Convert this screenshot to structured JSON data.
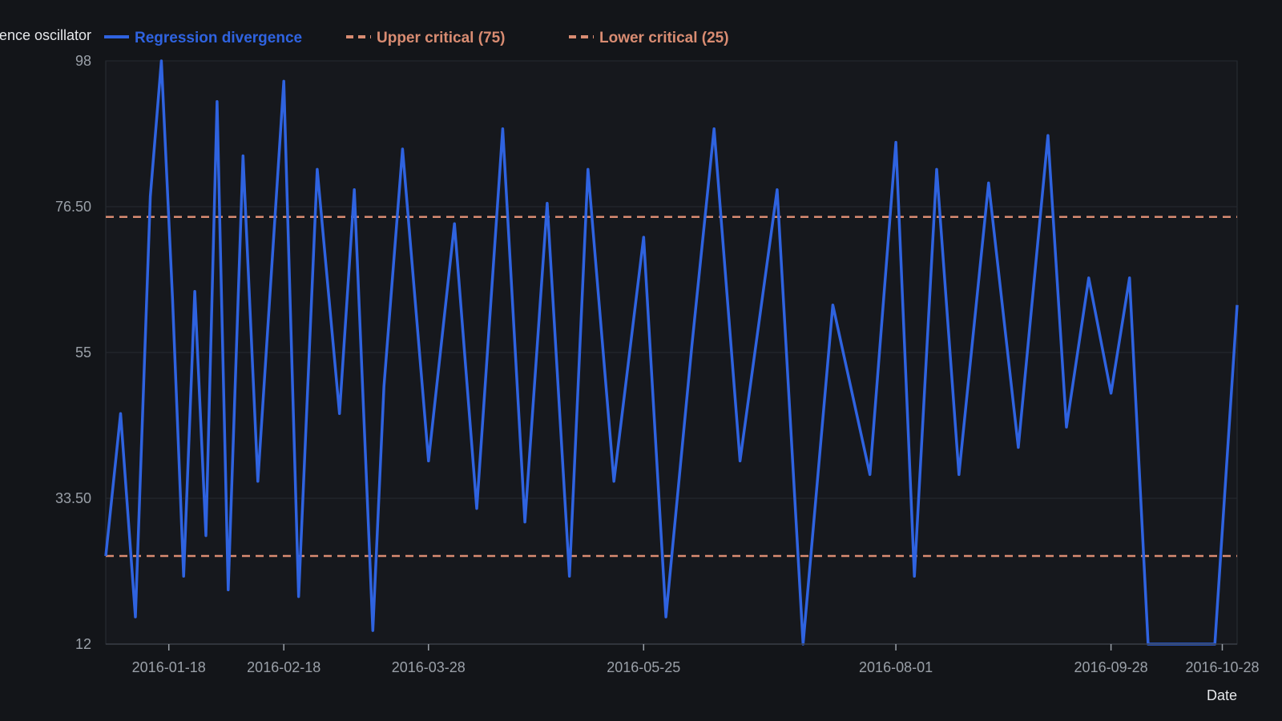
{
  "chart_data": {
    "type": "line",
    "ylabel": "Regression divergence oscillator",
    "xlabel": "Date",
    "ylim": [
      12,
      98
    ],
    "y_ticks": [
      "12",
      "33.50",
      "55",
      "76.50",
      "98"
    ],
    "x_range": [
      "2016-01-01",
      "2016-11-01"
    ],
    "x_tick_labels": [
      "2016-01-18",
      "2016-02-18",
      "2016-03-28",
      "2016-05-25",
      "2016-08-01",
      "2016-09-28",
      "2016-10-28"
    ],
    "grid": true,
    "legend_position": "top-left",
    "series": [
      {
        "name": "Regression divergence",
        "color": "#2f63e0",
        "x": [
          "2016-01-01",
          "2016-01-05",
          "2016-01-09",
          "2016-01-13",
          "2016-01-16",
          "2016-01-19",
          "2016-01-22",
          "2016-01-25",
          "2016-01-28",
          "2016-01-31",
          "2016-02-03",
          "2016-02-07",
          "2016-02-11",
          "2016-02-18",
          "2016-02-22",
          "2016-02-27",
          "2016-03-04",
          "2016-03-08",
          "2016-03-13",
          "2016-03-16",
          "2016-03-21",
          "2016-03-28",
          "2016-04-04",
          "2016-04-10",
          "2016-04-17",
          "2016-04-23",
          "2016-04-29",
          "2016-05-05",
          "2016-05-10",
          "2016-05-17",
          "2016-05-25",
          "2016-05-31",
          "2016-06-07",
          "2016-06-13",
          "2016-06-20",
          "2016-06-30",
          "2016-07-07",
          "2016-07-15",
          "2016-07-25",
          "2016-08-01",
          "2016-08-06",
          "2016-08-12",
          "2016-08-18",
          "2016-08-26",
          "2016-09-03",
          "2016-09-11",
          "2016-09-16",
          "2016-09-22",
          "2016-09-28",
          "2016-10-03",
          "2016-10-08",
          "2016-10-14",
          "2016-10-20",
          "2016-10-26",
          "2016-11-01"
        ],
        "values": [
          25,
          46,
          16,
          78,
          98,
          63,
          22,
          64,
          28,
          92,
          20,
          84,
          36,
          95,
          19,
          82,
          46,
          79,
          14,
          50,
          85,
          39,
          74,
          32,
          88,
          30,
          77,
          22,
          82,
          36,
          72,
          16,
          56,
          88,
          39,
          79,
          12,
          62,
          37,
          86,
          22,
          82,
          37,
          80,
          41,
          87,
          44,
          66,
          49,
          66,
          12,
          12,
          12,
          12,
          62
        ]
      },
      {
        "name": "Upper critical (75)",
        "color": "#d98c72",
        "dashed": true,
        "value": 75
      },
      {
        "name": "Lower critical (25)",
        "color": "#d98c72",
        "dashed": true,
        "value": 25
      }
    ]
  }
}
